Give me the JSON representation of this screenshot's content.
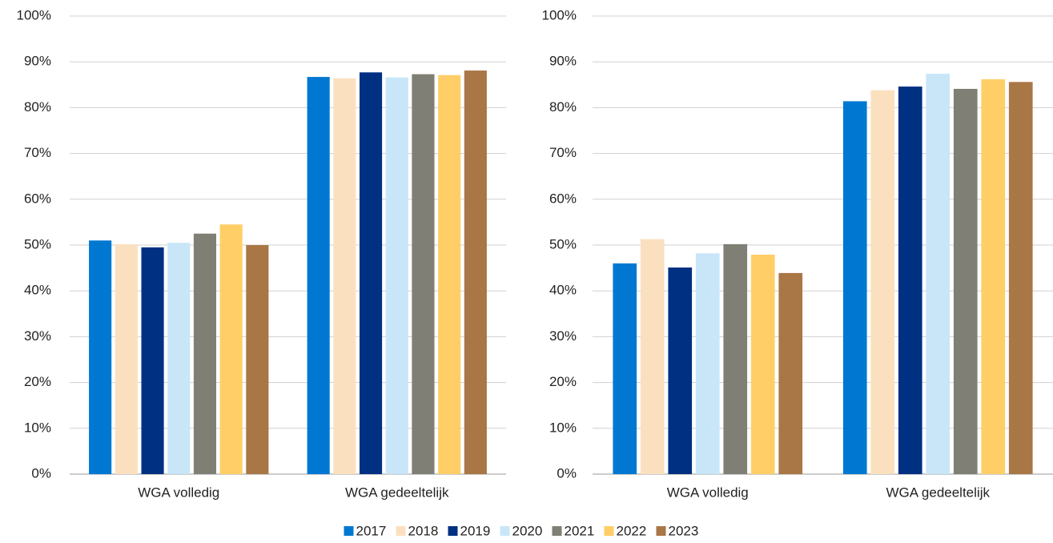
{
  "chart_data": [
    {
      "type": "bar",
      "categories": [
        "WGA volledig",
        "WGA gedeeltelijk"
      ],
      "series": [
        {
          "name": "2017",
          "color": "#0078d2",
          "values": [
            51,
            86.7
          ]
        },
        {
          "name": "2018",
          "color": "#fbe0c0",
          "values": [
            50.2,
            86.4
          ]
        },
        {
          "name": "2019",
          "color": "#003082",
          "values": [
            49.5,
            87.7
          ]
        },
        {
          "name": "2020",
          "color": "#c8e6f8",
          "values": [
            50.5,
            86.6
          ]
        },
        {
          "name": "2021",
          "color": "#7f7f75",
          "values": [
            52.5,
            87.3
          ]
        },
        {
          "name": "2022",
          "color": "#ffce66",
          "values": [
            54.5,
            87.1
          ]
        },
        {
          "name": "2023",
          "color": "#a97645",
          "values": [
            50,
            88.1
          ]
        }
      ],
      "ylim": [
        0,
        100
      ],
      "yticks": [
        {
          "value": 0,
          "label": "0%"
        },
        {
          "value": 10,
          "label": "10%"
        },
        {
          "value": 20,
          "label": "20%"
        },
        {
          "value": 30,
          "label": "30%"
        },
        {
          "value": 40,
          "label": "40%"
        },
        {
          "value": 50,
          "label": "50%"
        },
        {
          "value": 60,
          "label": "60%"
        },
        {
          "value": 70,
          "label": "70%"
        },
        {
          "value": 80,
          "label": "80%"
        },
        {
          "value": 90,
          "label": "90%"
        },
        {
          "value": 100,
          "label": "100%"
        }
      ],
      "grid": true
    },
    {
      "type": "bar",
      "categories": [
        "WGA volledig",
        "WGA gedeeltelijk"
      ],
      "series": [
        {
          "values": [
            46,
            81.4
          ]
        },
        {
          "values": [
            51.3,
            83.8
          ]
        },
        {
          "values": [
            45.1,
            84.6
          ]
        },
        {
          "values": [
            48.2,
            87.4
          ]
        },
        {
          "values": [
            50.2,
            84.1
          ]
        },
        {
          "values": [
            47.9,
            86.2
          ]
        },
        {
          "values": [
            43.9,
            85.6
          ]
        }
      ],
      "ylim": [
        0,
        100
      ],
      "yticks": [
        {
          "value": 0,
          "label": "0%"
        },
        {
          "value": 10,
          "label": "10%"
        },
        {
          "value": 20,
          "label": "20%"
        },
        {
          "value": 30,
          "label": "30%"
        },
        {
          "value": 40,
          "label": "40%"
        },
        {
          "value": 50,
          "label": "50%"
        },
        {
          "value": 60,
          "label": "60%"
        },
        {
          "value": 70,
          "label": "70%"
        },
        {
          "value": 80,
          "label": "80%"
        },
        {
          "value": 90,
          "label": "90%"
        },
        {
          "value": 100,
          "label": "100%"
        }
      ],
      "grid": true
    }
  ]
}
